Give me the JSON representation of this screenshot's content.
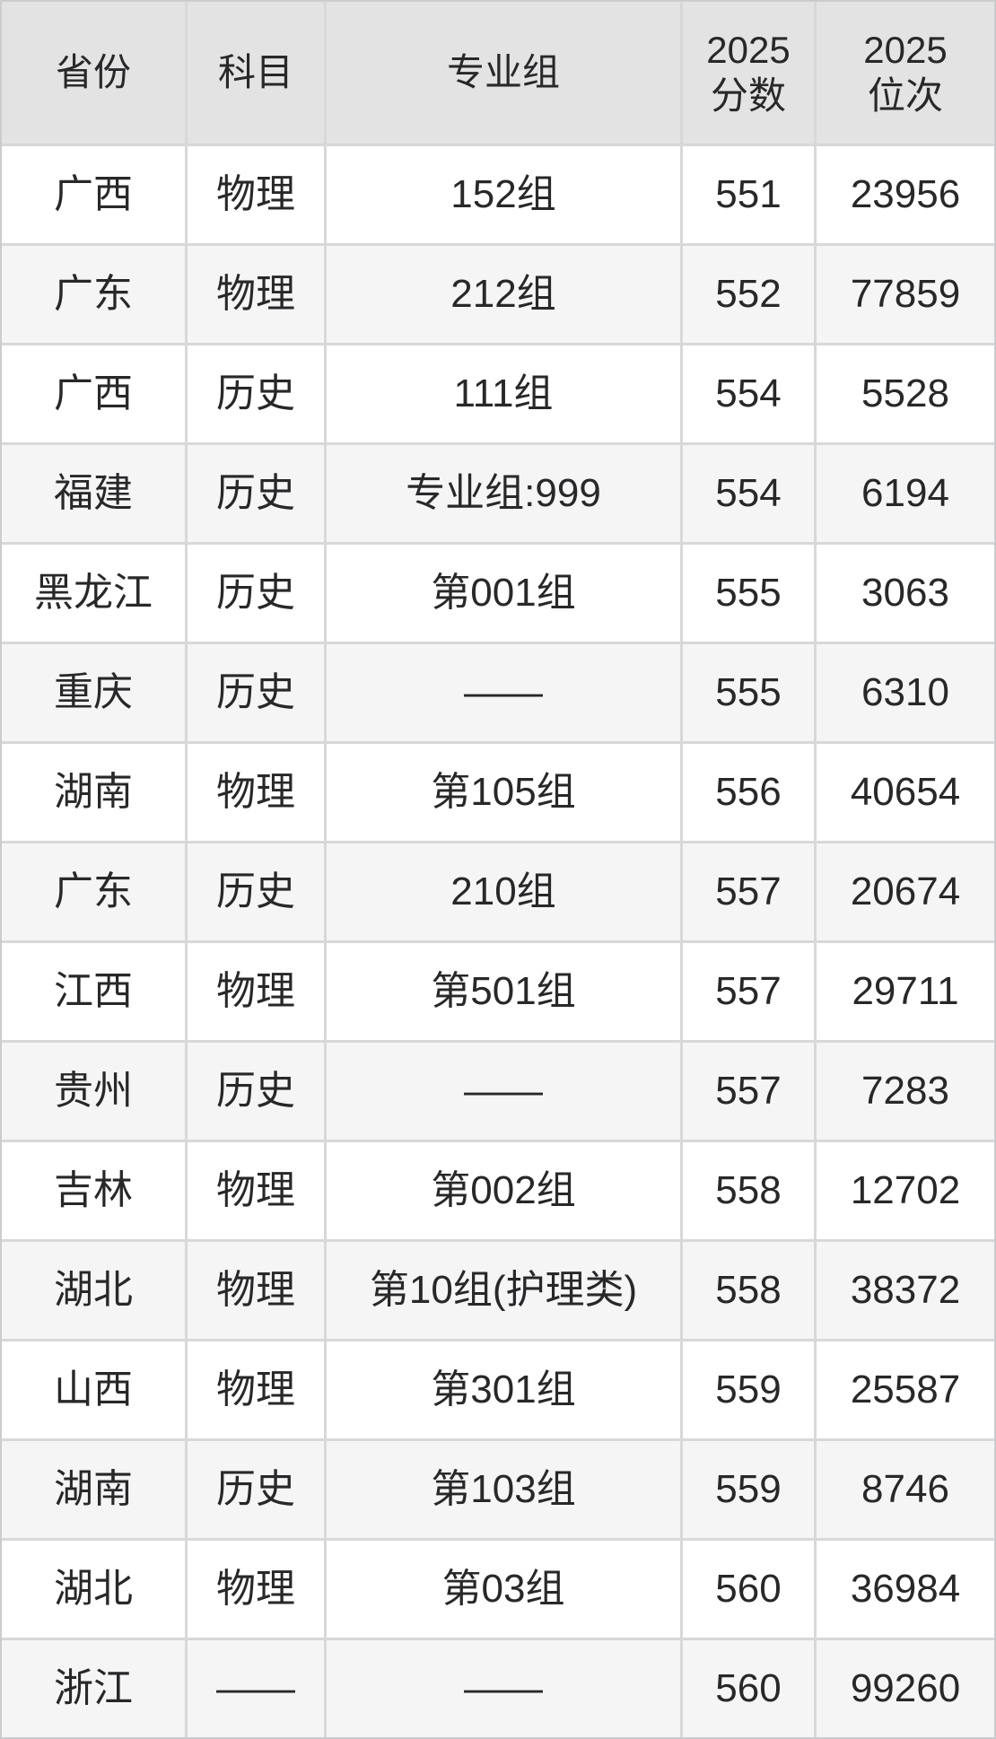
{
  "table": {
    "columns": [
      {
        "key": "province",
        "lines": [
          "省份"
        ]
      },
      {
        "key": "subject",
        "lines": [
          "科目"
        ]
      },
      {
        "key": "group",
        "lines": [
          "专业组"
        ]
      },
      {
        "key": "score_2025",
        "lines": [
          "2025",
          "分数"
        ]
      },
      {
        "key": "rank_2025",
        "lines": [
          "2025",
          "位次"
        ]
      }
    ],
    "rows": [
      [
        "广西",
        "物理",
        "152组",
        "551",
        "23956"
      ],
      [
        "广东",
        "物理",
        "212组",
        "552",
        "77859"
      ],
      [
        "广西",
        "历史",
        "111组",
        "554",
        "5528"
      ],
      [
        "福建",
        "历史",
        "专业组:999",
        "554",
        "6194"
      ],
      [
        "黑龙江",
        "历史",
        "第001组",
        "555",
        "3063"
      ],
      [
        "重庆",
        "历史",
        "——",
        "555",
        "6310"
      ],
      [
        "湖南",
        "物理",
        "第105组",
        "556",
        "40654"
      ],
      [
        "广东",
        "历史",
        "210组",
        "557",
        "20674"
      ],
      [
        "江西",
        "物理",
        "第501组",
        "557",
        "29711"
      ],
      [
        "贵州",
        "历史",
        "——",
        "557",
        "7283"
      ],
      [
        "吉林",
        "物理",
        "第002组",
        "558",
        "12702"
      ],
      [
        "湖北",
        "物理",
        "第10组(护理类)",
        "558",
        "38372"
      ],
      [
        "山西",
        "物理",
        "第301组",
        "559",
        "25587"
      ],
      [
        "湖南",
        "历史",
        "第103组",
        "559",
        "8746"
      ],
      [
        "湖北",
        "物理",
        "第03组",
        "560",
        "36984"
      ],
      [
        "浙江",
        "——",
        "——",
        "560",
        "99260"
      ]
    ]
  },
  "colors": {
    "outer_border": "#cbccce",
    "grid_line": "#d7d8d9",
    "header_bg": "#e3e3e4",
    "row_bg": "#ffffff",
    "row_alt_bg": "#f5f5f6",
    "text": "#28282a"
  }
}
